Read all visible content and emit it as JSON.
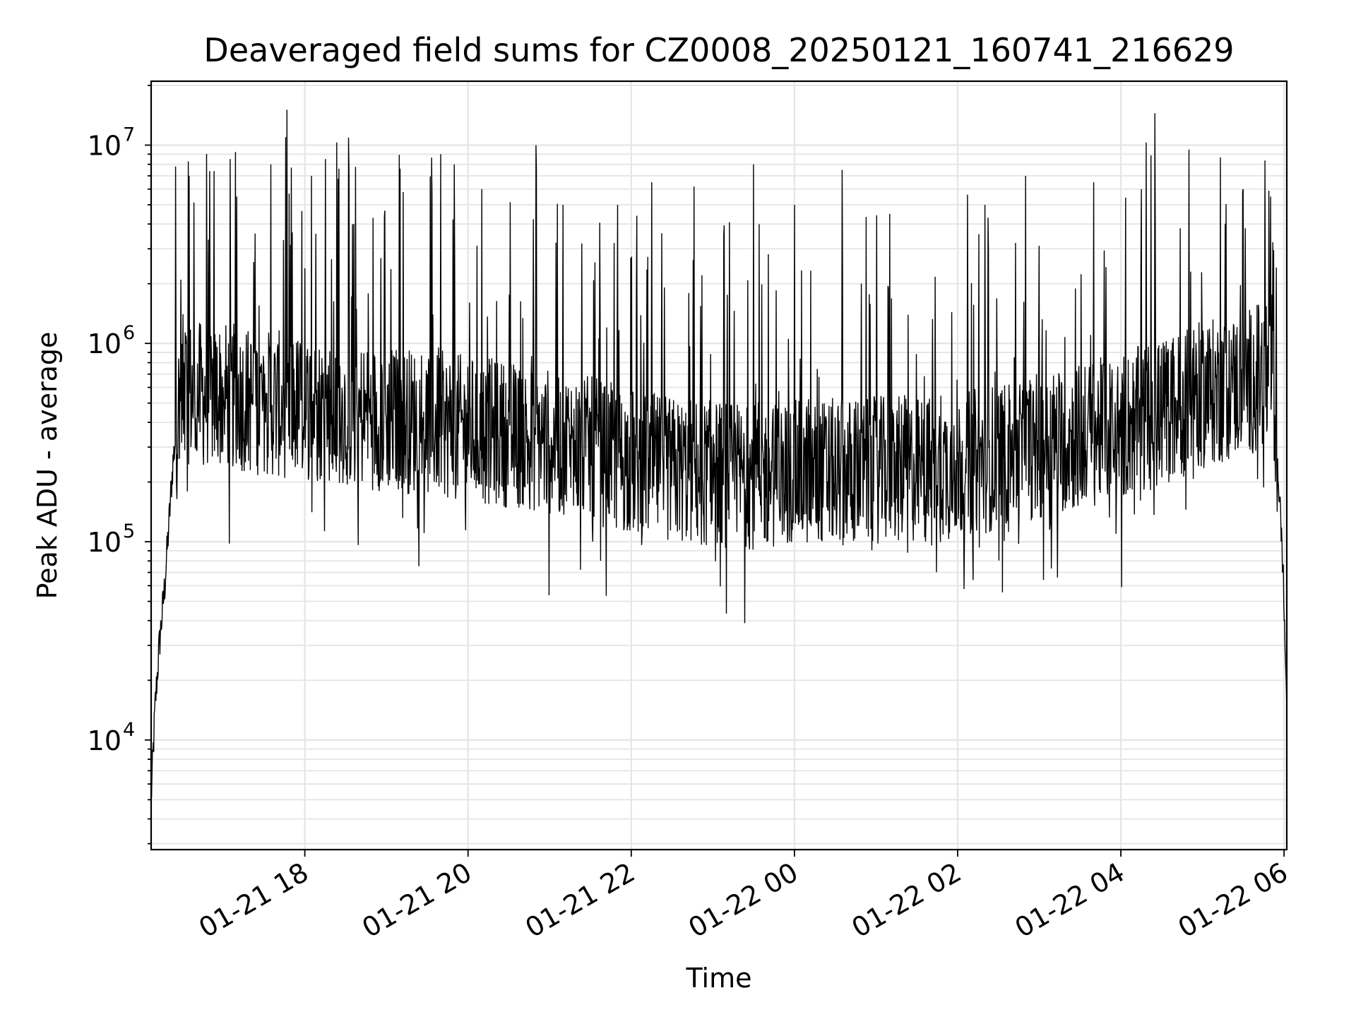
{
  "chart_data": {
    "type": "line",
    "title": "Deaveraged field sums for CZ0008_20250121_160741_216629",
    "xlabel": "Time",
    "ylabel": "Peak ADU - average",
    "yscale": "log",
    "ylim": [
      2800,
      21000000
    ],
    "xlim": [
      "2025-01-21 16:07",
      "2025-01-22 06:02"
    ],
    "x_ticks": [
      {
        "value": "2025-01-21 18:00",
        "label": "01-21 18"
      },
      {
        "value": "2025-01-21 20:00",
        "label": "01-21 20"
      },
      {
        "value": "2025-01-21 22:00",
        "label": "01-21 22"
      },
      {
        "value": "2025-01-22 00:00",
        "label": "01-22 00"
      },
      {
        "value": "2025-01-22 02:00",
        "label": "01-22 02"
      },
      {
        "value": "2025-01-22 04:00",
        "label": "01-22 04"
      },
      {
        "value": "2025-01-22 06:00",
        "label": "01-22 06"
      }
    ],
    "y_ticks": [
      {
        "value": 10000,
        "base": "10",
        "exp": "4"
      },
      {
        "value": 100000,
        "base": "10",
        "exp": "5"
      },
      {
        "value": 1000000,
        "base": "10",
        "exp": "6"
      },
      {
        "value": 10000000,
        "base": "10",
        "exp": "7"
      }
    ],
    "grid": true,
    "line_color": "#000000",
    "grid_color": "#e5e5e5",
    "series": [
      {
        "x": [
          "2025-01-21 16:07",
          "2025-01-21 16:10",
          "2025-01-21 16:13",
          "2025-01-21 16:17",
          "2025-01-21 16:20",
          "2025-01-21 16:23",
          "2025-01-21 16:27",
          "2025-01-21 16:30",
          "2025-01-21 16:40",
          "2025-01-21 17:00",
          "2025-01-21 17:30",
          "2025-01-21 18:00",
          "2025-01-21 18:30",
          "2025-01-21 19:00",
          "2025-01-21 19:30",
          "2025-01-21 20:00",
          "2025-01-21 20:30",
          "2025-01-21 21:00",
          "2025-01-21 21:30",
          "2025-01-21 22:00",
          "2025-01-21 22:30",
          "2025-01-21 23:00",
          "2025-01-21 23:30",
          "2025-01-22 00:00",
          "2025-01-22 00:30",
          "2025-01-22 01:00",
          "2025-01-22 01:30",
          "2025-01-22 02:00",
          "2025-01-22 02:30",
          "2025-01-22 03:00",
          "2025-01-22 03:30",
          "2025-01-22 04:00",
          "2025-01-22 04:30",
          "2025-01-22 05:00",
          "2025-01-22 05:30",
          "2025-01-22 05:45",
          "2025-01-22 05:52",
          "2025-01-22 05:56",
          "2025-01-22 05:59",
          "2025-01-22 06:02"
        ],
        "y": [
          5000,
          15000,
          30000,
          60000,
          120000,
          250000,
          450000,
          600000,
          550000,
          550000,
          500000,
          480000,
          450000,
          420000,
          400000,
          370000,
          350000,
          320000,
          290000,
          250000,
          230000,
          220000,
          215000,
          220000,
          225000,
          230000,
          230000,
          240000,
          270000,
          310000,
          340000,
          380000,
          450000,
          550000,
          620000,
          700000,
          650000,
          200000,
          80000,
          15000
        ]
      }
    ],
    "spikes": [
      {
        "x": "2025-01-21 16:25",
        "y": 7800000
      },
      {
        "x": "2025-01-21 16:35",
        "y": 7000000
      },
      {
        "x": "2025-01-21 16:50",
        "y": 7400000
      },
      {
        "x": "2025-01-21 17:10",
        "y": 5500000
      },
      {
        "x": "2025-01-21 17:35",
        "y": 8000000
      },
      {
        "x": "2025-01-21 17:50",
        "y": 7700000
      },
      {
        "x": "2025-01-21 18:05",
        "y": 7000000
      },
      {
        "x": "2025-01-21 18:15",
        "y": 8500000
      },
      {
        "x": "2025-01-21 18:25",
        "y": 7600000
      },
      {
        "x": "2025-01-21 18:50",
        "y": 4300000
      },
      {
        "x": "2025-01-21 19:10",
        "y": 7600000
      },
      {
        "x": "2025-01-21 19:40",
        "y": 9000000
      },
      {
        "x": "2025-01-21 19:50",
        "y": 8000000
      },
      {
        "x": "2025-01-21 20:10",
        "y": 6000000
      },
      {
        "x": "2025-01-21 20:50",
        "y": 10000000
      },
      {
        "x": "2025-01-21 21:10",
        "y": 5000000
      },
      {
        "x": "2025-01-21 21:50",
        "y": 5000000
      },
      {
        "x": "2025-01-21 22:15",
        "y": 6500000
      },
      {
        "x": "2025-01-21 23:30",
        "y": 8000000
      },
      {
        "x": "2025-01-22 00:00",
        "y": 5000000
      },
      {
        "x": "2025-01-22 00:35",
        "y": 7500000
      },
      {
        "x": "2025-01-22 01:10",
        "y": 4500000
      },
      {
        "x": "2025-01-22 02:20",
        "y": 5000000
      },
      {
        "x": "2025-01-22 02:50",
        "y": 7000000
      },
      {
        "x": "2025-01-22 03:40",
        "y": 6500000
      },
      {
        "x": "2025-01-22 04:15",
        "y": 6000000
      },
      {
        "x": "2025-01-22 04:25",
        "y": 14500000
      },
      {
        "x": "2025-01-22 04:50",
        "y": 9500000
      },
      {
        "x": "2025-01-22 05:30",
        "y": 6000000
      },
      {
        "x": "2025-01-22 05:50",
        "y": 5500000
      }
    ]
  }
}
